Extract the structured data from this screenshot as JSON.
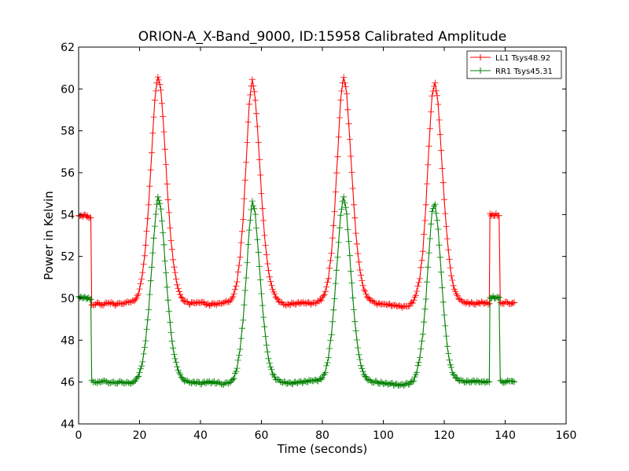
{
  "chart_data": {
    "type": "line",
    "title": "ORION-A_X-Band_9000, ID:15958 Calibrated Amplitude",
    "xlabel": "Time (seconds)",
    "ylabel": "Power in Kelvin",
    "xlim": [
      0,
      160
    ],
    "ylim": [
      44,
      62
    ],
    "xticks": [
      "0",
      "20",
      "40",
      "60",
      "80",
      "100",
      "120",
      "140",
      "160"
    ],
    "yticks": [
      "44",
      "46",
      "48",
      "50",
      "52",
      "54",
      "56",
      "58",
      "60",
      "62"
    ],
    "grid": false,
    "legend_position": "top-right",
    "marker": "+",
    "series": [
      {
        "name": "LL1 Tsys48.92",
        "color": "#ff0000",
        "points": [
          [
            0,
            53.95
          ],
          [
            1,
            53.9
          ],
          [
            2,
            54.0
          ],
          [
            3,
            53.9
          ],
          [
            4,
            53.85
          ],
          [
            4.3,
            49.7
          ],
          [
            6,
            49.75
          ],
          [
            8,
            49.7
          ],
          [
            10,
            49.8
          ],
          [
            12,
            49.7
          ],
          [
            14,
            49.75
          ],
          [
            16,
            49.8
          ],
          [
            18,
            49.85
          ],
          [
            19,
            50.0
          ],
          [
            20,
            50.4
          ],
          [
            21,
            51.2
          ],
          [
            22,
            52.5
          ],
          [
            23,
            54.5
          ],
          [
            24,
            57.0
          ],
          [
            25,
            59.5
          ],
          [
            26,
            60.6
          ],
          [
            27,
            60.0
          ],
          [
            28,
            58.0
          ],
          [
            29,
            55.5
          ],
          [
            30,
            53.3
          ],
          [
            31,
            51.8
          ],
          [
            32,
            50.9
          ],
          [
            33,
            50.3
          ],
          [
            34,
            50.0
          ],
          [
            35,
            49.8
          ],
          [
            37,
            49.75
          ],
          [
            40,
            49.8
          ],
          [
            43,
            49.7
          ],
          [
            46,
            49.75
          ],
          [
            48,
            49.8
          ],
          [
            50,
            49.9
          ],
          [
            51,
            50.2
          ],
          [
            52,
            50.8
          ],
          [
            53,
            52.0
          ],
          [
            54,
            53.8
          ],
          [
            55,
            56.5
          ],
          [
            56,
            59.3
          ],
          [
            57,
            60.5
          ],
          [
            58,
            59.5
          ],
          [
            59,
            57.5
          ],
          [
            60,
            55.0
          ],
          [
            61,
            53.0
          ],
          [
            62,
            51.6
          ],
          [
            63,
            50.8
          ],
          [
            64,
            50.3
          ],
          [
            65,
            50.0
          ],
          [
            66,
            49.8
          ],
          [
            68,
            49.7
          ],
          [
            71,
            49.75
          ],
          [
            74,
            49.8
          ],
          [
            77,
            49.75
          ],
          [
            79,
            49.85
          ],
          [
            80,
            50.0
          ],
          [
            81,
            50.3
          ],
          [
            82,
            51.0
          ],
          [
            83,
            52.2
          ],
          [
            84,
            54.2
          ],
          [
            85,
            56.8
          ],
          [
            86,
            59.5
          ],
          [
            87,
            60.6
          ],
          [
            88,
            59.8
          ],
          [
            89,
            57.6
          ],
          [
            90,
            55.2
          ],
          [
            91,
            53.1
          ],
          [
            92,
            51.7
          ],
          [
            93,
            50.8
          ],
          [
            94,
            50.3
          ],
          [
            95,
            50.0
          ],
          [
            96,
            49.85
          ],
          [
            98,
            49.75
          ],
          [
            101,
            49.7
          ],
          [
            104,
            49.65
          ],
          [
            107,
            49.6
          ],
          [
            109,
            49.7
          ],
          [
            110,
            49.9
          ],
          [
            111,
            50.3
          ],
          [
            112,
            51.0
          ],
          [
            113,
            52.3
          ],
          [
            114,
            54.5
          ],
          [
            115,
            57.3
          ],
          [
            116,
            59.7
          ],
          [
            117,
            60.3
          ],
          [
            118,
            59.3
          ],
          [
            119,
            57.0
          ],
          [
            120,
            54.7
          ],
          [
            121,
            52.8
          ],
          [
            122,
            51.4
          ],
          [
            123,
            50.6
          ],
          [
            124,
            50.2
          ],
          [
            125,
            49.9
          ],
          [
            127,
            49.8
          ],
          [
            130,
            49.75
          ],
          [
            133,
            49.8
          ],
          [
            134.8,
            49.75
          ],
          [
            135,
            54.0
          ],
          [
            136,
            53.95
          ],
          [
            137,
            54.0
          ],
          [
            138,
            53.95
          ],
          [
            138.4,
            49.75
          ],
          [
            140,
            49.8
          ],
          [
            142,
            49.75
          ],
          [
            143,
            49.8
          ]
        ]
      },
      {
        "name": "RR1 Tsys45.31",
        "color": "#008000",
        "points": [
          [
            0,
            50.05
          ],
          [
            1,
            50.0
          ],
          [
            2,
            50.05
          ],
          [
            3,
            50.0
          ],
          [
            4,
            49.95
          ],
          [
            4.3,
            46.05
          ],
          [
            6,
            46.0
          ],
          [
            8,
            46.05
          ],
          [
            10,
            46.0
          ],
          [
            12,
            45.95
          ],
          [
            14,
            46.0
          ],
          [
            16,
            45.95
          ],
          [
            18,
            46.0
          ],
          [
            19,
            46.1
          ],
          [
            20,
            46.4
          ],
          [
            21,
            47.0
          ],
          [
            22,
            48.0
          ],
          [
            23,
            49.5
          ],
          [
            24,
            51.5
          ],
          [
            25,
            53.5
          ],
          [
            26,
            54.9
          ],
          [
            27,
            54.3
          ],
          [
            28,
            52.5
          ],
          [
            29,
            50.5
          ],
          [
            30,
            48.8
          ],
          [
            31,
            47.6
          ],
          [
            32,
            46.9
          ],
          [
            33,
            46.4
          ],
          [
            34,
            46.15
          ],
          [
            35,
            46.05
          ],
          [
            37,
            46.0
          ],
          [
            40,
            45.95
          ],
          [
            43,
            46.0
          ],
          [
            46,
            45.95
          ],
          [
            48,
            45.9
          ],
          [
            50,
            46.0
          ],
          [
            51,
            46.2
          ],
          [
            52,
            46.7
          ],
          [
            53,
            47.6
          ],
          [
            54,
            49.0
          ],
          [
            55,
            51.0
          ],
          [
            56,
            53.3
          ],
          [
            57,
            54.7
          ],
          [
            58,
            54.0
          ],
          [
            59,
            52.2
          ],
          [
            60,
            50.2
          ],
          [
            61,
            48.6
          ],
          [
            62,
            47.4
          ],
          [
            63,
            46.7
          ],
          [
            64,
            46.3
          ],
          [
            65,
            46.1
          ],
          [
            67,
            46.0
          ],
          [
            70,
            45.95
          ],
          [
            73,
            46.0
          ],
          [
            76,
            46.05
          ],
          [
            79,
            46.1
          ],
          [
            80,
            46.2
          ],
          [
            81,
            46.5
          ],
          [
            82,
            47.2
          ],
          [
            83,
            48.3
          ],
          [
            84,
            50.0
          ],
          [
            85,
            52.0
          ],
          [
            86,
            54.0
          ],
          [
            87,
            54.9
          ],
          [
            88,
            54.0
          ],
          [
            89,
            52.0
          ],
          [
            90,
            50.0
          ],
          [
            91,
            48.4
          ],
          [
            92,
            47.3
          ],
          [
            93,
            46.6
          ],
          [
            94,
            46.25
          ],
          [
            95,
            46.1
          ],
          [
            97,
            46.0
          ],
          [
            100,
            45.95
          ],
          [
            103,
            45.9
          ],
          [
            106,
            45.85
          ],
          [
            109,
            45.95
          ],
          [
            110,
            46.1
          ],
          [
            111,
            46.5
          ],
          [
            112,
            47.2
          ],
          [
            113,
            48.3
          ],
          [
            114,
            50.0
          ],
          [
            115,
            52.2
          ],
          [
            116,
            54.2
          ],
          [
            117,
            54.5
          ],
          [
            118,
            53.3
          ],
          [
            119,
            51.2
          ],
          [
            120,
            49.2
          ],
          [
            121,
            47.7
          ],
          [
            122,
            46.8
          ],
          [
            123,
            46.35
          ],
          [
            124,
            46.15
          ],
          [
            125,
            46.05
          ],
          [
            127,
            46.0
          ],
          [
            130,
            46.05
          ],
          [
            133,
            46.0
          ],
          [
            134.8,
            46.0
          ],
          [
            135,
            50.0
          ],
          [
            136,
            50.05
          ],
          [
            137,
            50.0
          ],
          [
            138,
            50.05
          ],
          [
            138.4,
            46.05
          ],
          [
            140,
            46.0
          ],
          [
            142,
            46.05
          ],
          [
            143,
            46.0
          ]
        ]
      }
    ]
  }
}
